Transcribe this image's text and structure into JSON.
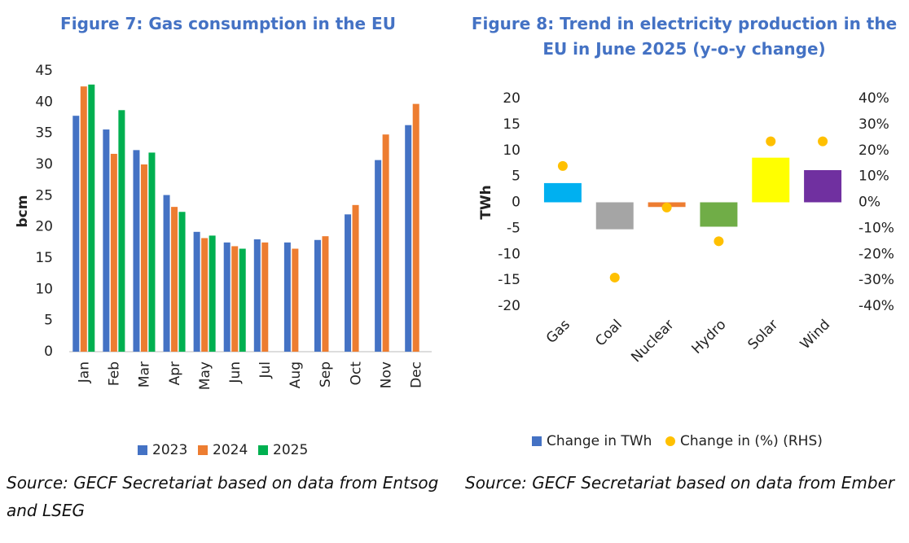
{
  "chart_data": [
    {
      "type": "bar",
      "title": "Figure 7: Gas consumption in the EU",
      "ylabel": "bcm",
      "categories": [
        "Jan",
        "Feb",
        "Mar",
        "Apr",
        "May",
        "Jun",
        "Jul",
        "Aug",
        "Sep",
        "Oct",
        "Nov",
        "Dec"
      ],
      "series": [
        {
          "name": "2023",
          "color": "#4472c4",
          "values": [
            37.8,
            35.6,
            32.3,
            25.1,
            19.2,
            17.5,
            18.0,
            17.5,
            17.9,
            22.0,
            30.7,
            36.3
          ]
        },
        {
          "name": "2024",
          "color": "#ed7d31",
          "values": [
            42.5,
            31.7,
            30.0,
            23.2,
            18.2,
            16.9,
            17.5,
            16.5,
            18.5,
            23.5,
            34.8,
            39.7
          ]
        },
        {
          "name": "2025",
          "color": "#00b050",
          "values": [
            42.8,
            38.7,
            31.9,
            22.4,
            18.6,
            16.5,
            null,
            null,
            null,
            null,
            null,
            null
          ]
        }
      ],
      "ylim": [
        0,
        45
      ],
      "yticks": [
        0,
        5,
        10,
        15,
        20,
        25,
        30,
        35,
        40,
        45
      ],
      "legend": "bottom",
      "source": "Source: GECF Secretariat based on data from Entsog and LSEG"
    },
    {
      "type": "combo",
      "title": "Figure 8: Trend in electricity production in the EU in June 2025 (y-o-y change)",
      "ylabel": "TWh",
      "categories": [
        "Gas",
        "Coal",
        "Nuclear",
        "Hydro",
        "Solar",
        "Wind"
      ],
      "series": [
        {
          "name": "Change in TWh",
          "type": "bar",
          "color": "#4472c4",
          "colors": [
            "#00b0f0",
            "#a5a5a5",
            "#ed7d31",
            "#70ad47",
            "#ffff00",
            "#7030a0"
          ],
          "values": [
            3.7,
            -5.2,
            -0.9,
            -4.7,
            8.6,
            6.2
          ]
        },
        {
          "name": "Change in (%) (RHS)",
          "type": "scatter",
          "axis": "y2",
          "color": "#ffc000",
          "values": [
            14,
            -29,
            -2,
            -15,
            23.5,
            23.5
          ]
        }
      ],
      "ylim": [
        -20,
        20
      ],
      "yticks": [
        -20,
        -15,
        -10,
        -5,
        0,
        5,
        10,
        15,
        20
      ],
      "y2lim": [
        -40,
        40
      ],
      "y2ticks": [
        {
          "value": -40,
          "label": "-40%"
        },
        {
          "value": -30,
          "label": "-30%"
        },
        {
          "value": -20,
          "label": "-20%"
        },
        {
          "value": -10,
          "label": "-10%"
        },
        {
          "value": 0,
          "label": "0%"
        },
        {
          "value": 10,
          "label": "10%"
        },
        {
          "value": 20,
          "label": "20%"
        },
        {
          "value": 30,
          "label": "30%"
        },
        {
          "value": 40,
          "label": "40%"
        }
      ],
      "legend": "bottom",
      "source": "Source: GECF Secretariat based on data from Ember"
    }
  ]
}
